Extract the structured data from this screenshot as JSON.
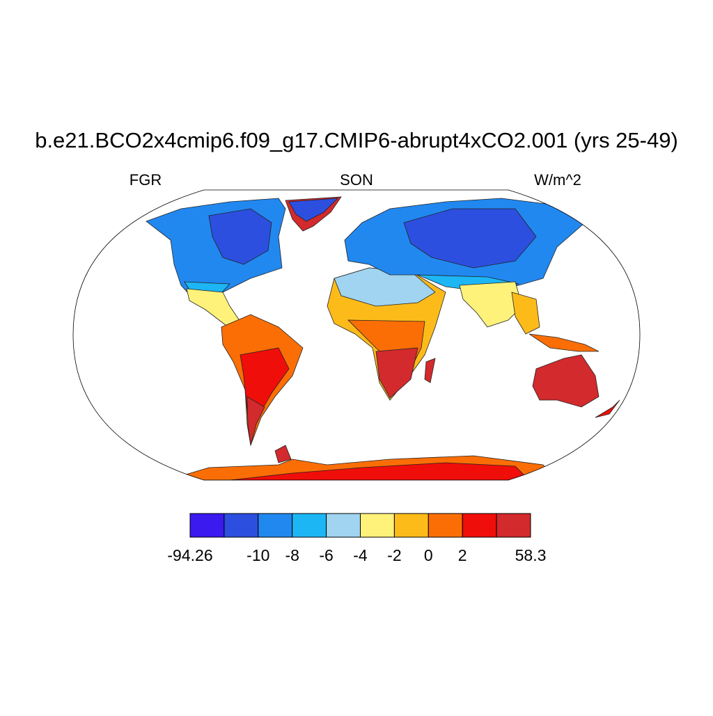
{
  "title": "b.e21.BCO2x4cmip6.f09_g17.CMIP6-abrupt4xCO2.001 (yrs 25-49)",
  "left_label": "FGR",
  "center_label": "SON",
  "right_label": "W/m^2",
  "colorbar": {
    "colors": [
      "#3a1aef",
      "#2d4fdf",
      "#2188f0",
      "#1cb6f5",
      "#a0d4f0",
      "#fef27a",
      "#fdbb1a",
      "#fb6e06",
      "#f00e0a",
      "#d22a2d"
    ],
    "levels": [
      -94.26,
      null,
      -10,
      -8,
      -6,
      -4,
      -2,
      0,
      2,
      null,
      58.3
    ]
  }
}
